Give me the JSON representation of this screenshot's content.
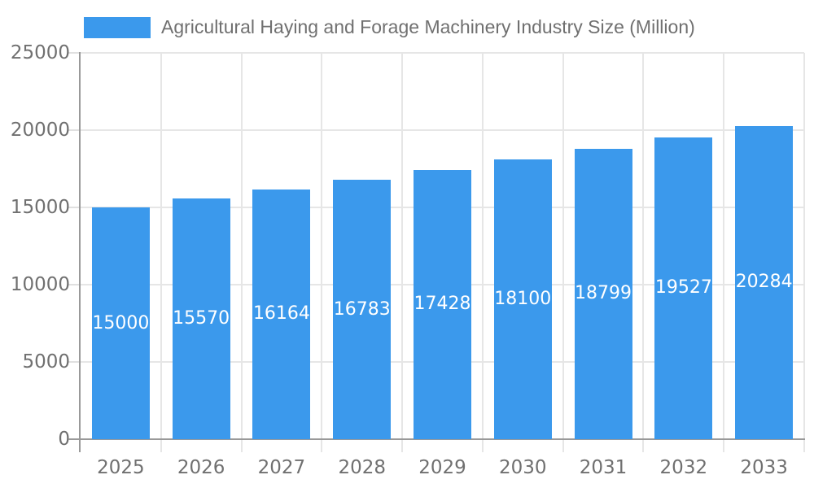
{
  "chart_data": {
    "type": "bar",
    "title": "Agricultural Haying and Forage Machinery Industry Size (Million)",
    "categories": [
      "2025",
      "2026",
      "2027",
      "2028",
      "2029",
      "2030",
      "2031",
      "2032",
      "2033"
    ],
    "series": [
      {
        "name": "Agricultural Haying and Forage Machinery Industry Size (Million)",
        "values": [
          15000,
          15570,
          16164,
          16783,
          17428,
          18100,
          18799,
          19527,
          20284
        ],
        "color": "#3B99EC"
      }
    ],
    "xlabel": "",
    "ylabel": "",
    "ylim": [
      0,
      25000
    ],
    "yticks": [
      0,
      5000,
      10000,
      15000,
      20000,
      25000
    ],
    "grid": true,
    "legend_position": "top",
    "data_labels": {
      "position": "inside-center",
      "color": "#ffffff"
    },
    "colors": {
      "bar": "#3B99EC",
      "axis_line": "#999999",
      "gridline": "#e6e6e6",
      "tick": "#e0e0e0",
      "label_text": "#707070",
      "background": "#ffffff"
    }
  }
}
